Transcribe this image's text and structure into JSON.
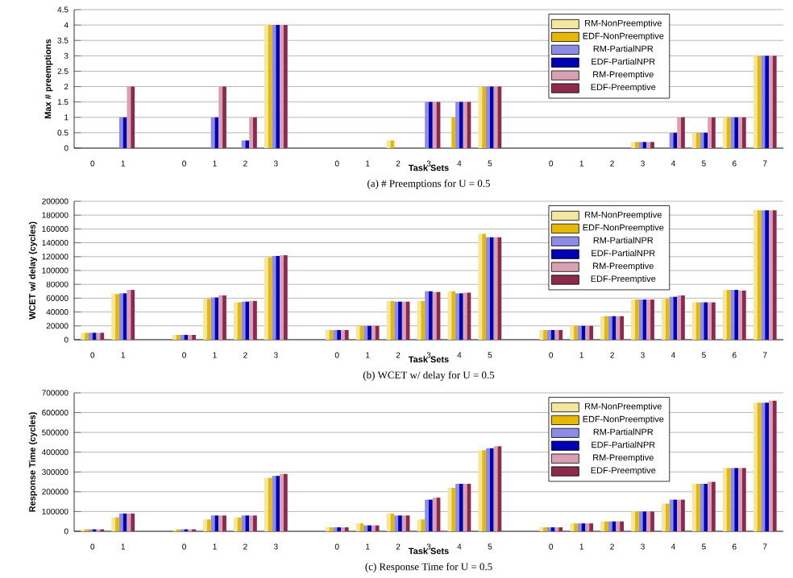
{
  "chart_data": [
    {
      "type": "bar",
      "xlabel": "Task Sets",
      "ylabel": "Max # preemptions",
      "annotations": [
        "(a) # Preemptions for U = 0.5"
      ],
      "categories": [
        "0",
        "1",
        null,
        "0",
        "1",
        "2",
        "3",
        null,
        "0",
        "1",
        "2",
        "3",
        "4",
        "5",
        null,
        "0",
        "1",
        "2",
        "3",
        "4",
        "5",
        "6",
        "7"
      ],
      "ylim": [
        0,
        4.5
      ],
      "yticks": [
        0,
        0.5,
        1,
        1.5,
        2,
        2.5,
        3,
        3.5,
        4,
        4.5
      ],
      "grid": "y",
      "legend": "top right",
      "series": [
        {
          "name": "RM-NonPreemptive",
          "color": "#f2e6a0",
          "values": [
            0,
            0,
            null,
            0,
            0,
            0,
            4,
            null,
            0,
            0,
            0.25,
            0,
            0,
            2,
            null,
            0,
            0,
            0,
            0.2,
            0,
            0.5,
            1,
            3
          ]
        },
        {
          "name": "EDF-NonPreemptive",
          "color": "#e6b800",
          "values": [
            0,
            0,
            null,
            0,
            0,
            0,
            4,
            null,
            0,
            0,
            0.25,
            0,
            1,
            2,
            null,
            0,
            0,
            0,
            0.2,
            0,
            0.5,
            1,
            3
          ]
        },
        {
          "name": "RM-PartialNPR",
          "color": "#8c8ce6",
          "values": [
            0,
            1,
            null,
            0,
            1,
            0.25,
            4,
            null,
            0,
            0,
            0,
            1.5,
            1.5,
            2,
            null,
            0,
            0,
            0,
            0.2,
            0.5,
            0.5,
            1,
            3
          ]
        },
        {
          "name": "EDF-PartialNPR",
          "color": "#0000b4",
          "values": [
            0,
            1,
            null,
            0,
            1,
            0.25,
            4,
            null,
            0,
            0,
            0,
            1.5,
            1.5,
            2,
            null,
            0,
            0,
            0,
            0.2,
            0.5,
            0.5,
            1,
            3
          ]
        },
        {
          "name": "RM-Preemptive",
          "color": "#d9a0b3",
          "values": [
            0,
            2,
            null,
            0,
            2,
            1,
            4,
            null,
            0,
            0,
            0,
            1.5,
            1.5,
            2,
            null,
            0,
            0,
            0,
            0.2,
            1,
            1,
            1,
            3
          ]
        },
        {
          "name": "EDF-Preemptive",
          "color": "#8c2a4d",
          "values": [
            0,
            2,
            null,
            0,
            2,
            1,
            4,
            null,
            0,
            0,
            0,
            1.5,
            1.5,
            2,
            null,
            0,
            0,
            0,
            0.2,
            1,
            1,
            1,
            3
          ]
        }
      ]
    },
    {
      "type": "bar",
      "xlabel": "Task Sets",
      "ylabel": "WCET w/ delay (cycles)",
      "annotations": [
        "(b) WCET w/ delay for U = 0.5"
      ],
      "categories": [
        "0",
        "1",
        null,
        "0",
        "1",
        "2",
        "3",
        null,
        "0",
        "1",
        "2",
        "3",
        "4",
        "5",
        null,
        "0",
        "1",
        "2",
        "3",
        "4",
        "5",
        "6",
        "7"
      ],
      "ylim": [
        0,
        200000
      ],
      "yticks": [
        0,
        20000,
        40000,
        60000,
        80000,
        100000,
        120000,
        140000,
        160000,
        180000,
        200000
      ],
      "grid": "y",
      "legend": "top right",
      "series": [
        {
          "name": "RM-NonPreemptive",
          "color": "#f2e6a0",
          "values": [
            10000,
            66000,
            null,
            7000,
            59000,
            54000,
            119000,
            null,
            14000,
            20000,
            56000,
            56000,
            70000,
            153000,
            null,
            14000,
            20000,
            34000,
            58000,
            59000,
            54000,
            72000,
            187000
          ]
        },
        {
          "name": "EDF-NonPreemptive",
          "color": "#e6b800",
          "values": [
            10000,
            66000,
            null,
            7000,
            59000,
            54000,
            119000,
            null,
            14000,
            20000,
            56000,
            56000,
            70000,
            153000,
            null,
            14000,
            20000,
            34000,
            58000,
            59000,
            54000,
            72000,
            187000
          ]
        },
        {
          "name": "RM-PartialNPR",
          "color": "#8c8ce6",
          "values": [
            10000,
            67000,
            null,
            7000,
            61000,
            55000,
            121000,
            null,
            14000,
            20000,
            55000,
            70000,
            67000,
            148000,
            null,
            14000,
            20000,
            34000,
            58000,
            62000,
            54000,
            72000,
            187000
          ]
        },
        {
          "name": "EDF-PartialNPR",
          "color": "#0000b4",
          "values": [
            10000,
            67000,
            null,
            7000,
            61000,
            55000,
            121000,
            null,
            14000,
            20000,
            55000,
            70000,
            67000,
            148000,
            null,
            14000,
            20000,
            34000,
            58000,
            62000,
            54000,
            72000,
            187000
          ]
        },
        {
          "name": "RM-Preemptive",
          "color": "#d9a0b3",
          "values": [
            10000,
            72000,
            null,
            7000,
            64000,
            56000,
            122000,
            null,
            14000,
            20000,
            55000,
            69000,
            68000,
            148000,
            null,
            14000,
            20000,
            34000,
            58000,
            64000,
            54000,
            71000,
            187000
          ]
        },
        {
          "name": "EDF-Preemptive",
          "color": "#8c2a4d",
          "values": [
            10000,
            72000,
            null,
            7000,
            64000,
            56000,
            122000,
            null,
            14000,
            20000,
            55000,
            69000,
            68000,
            148000,
            null,
            14000,
            20000,
            34000,
            58000,
            64000,
            54000,
            71000,
            187000
          ]
        }
      ]
    },
    {
      "type": "bar",
      "xlabel": "Task Sets",
      "ylabel": "Response Time (cycles)",
      "annotations": [
        "(c) Response Time for U = 0.5"
      ],
      "categories": [
        "0",
        "1",
        null,
        "0",
        "1",
        "2",
        "3",
        null,
        "0",
        "1",
        "2",
        "3",
        "4",
        "5",
        null,
        "0",
        "1",
        "2",
        "3",
        "4",
        "5",
        "6",
        "7"
      ],
      "ylim": [
        0,
        700000
      ],
      "yticks": [
        0,
        100000,
        200000,
        300000,
        400000,
        500000,
        600000,
        700000
      ],
      "grid": "y",
      "legend": "top right",
      "series": [
        {
          "name": "RM-NonPreemptive",
          "color": "#f2e6a0",
          "values": [
            10000,
            70000,
            null,
            10000,
            60000,
            70000,
            270000,
            null,
            20000,
            40000,
            90000,
            60000,
            220000,
            410000,
            null,
            20000,
            40000,
            50000,
            100000,
            140000,
            240000,
            320000,
            650000
          ]
        },
        {
          "name": "EDF-NonPreemptive",
          "color": "#e6b800",
          "values": [
            10000,
            70000,
            null,
            10000,
            60000,
            70000,
            270000,
            null,
            20000,
            40000,
            90000,
            60000,
            220000,
            410000,
            null,
            20000,
            40000,
            50000,
            100000,
            140000,
            240000,
            320000,
            650000
          ]
        },
        {
          "name": "RM-PartialNPR",
          "color": "#8c8ce6",
          "values": [
            10000,
            90000,
            null,
            10000,
            80000,
            80000,
            280000,
            null,
            20000,
            30000,
            80000,
            160000,
            240000,
            420000,
            null,
            20000,
            40000,
            50000,
            100000,
            160000,
            240000,
            320000,
            650000
          ]
        },
        {
          "name": "EDF-PartialNPR",
          "color": "#0000b4",
          "values": [
            10000,
            90000,
            null,
            10000,
            80000,
            80000,
            280000,
            null,
            20000,
            30000,
            80000,
            160000,
            240000,
            420000,
            null,
            20000,
            40000,
            50000,
            100000,
            160000,
            240000,
            320000,
            650000
          ]
        },
        {
          "name": "RM-Preemptive",
          "color": "#d9a0b3",
          "values": [
            10000,
            90000,
            null,
            10000,
            80000,
            80000,
            290000,
            null,
            20000,
            30000,
            80000,
            170000,
            240000,
            430000,
            null,
            20000,
            40000,
            50000,
            100000,
            160000,
            250000,
            320000,
            660000
          ]
        },
        {
          "name": "EDF-Preemptive",
          "color": "#8c2a4d",
          "values": [
            10000,
            90000,
            null,
            10000,
            80000,
            80000,
            290000,
            null,
            20000,
            30000,
            80000,
            170000,
            240000,
            430000,
            null,
            20000,
            40000,
            50000,
            100000,
            160000,
            250000,
            320000,
            660000
          ]
        }
      ]
    }
  ]
}
